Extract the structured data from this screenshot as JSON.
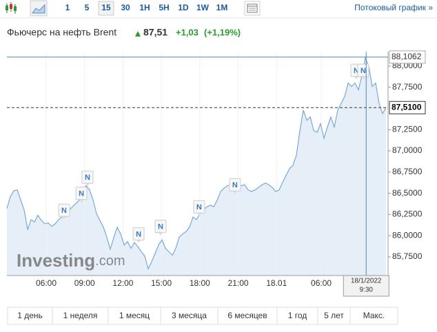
{
  "toolbar": {
    "intervals": [
      "1",
      "5",
      "15",
      "30",
      "1H",
      "5H",
      "1D",
      "1W",
      "1M"
    ],
    "streaming_link": "Потоковый график »"
  },
  "header": {
    "name": "Фьючерс на нефть Brent",
    "price": "87,51",
    "change": "+1,03",
    "change_pct": "(+1,19%)"
  },
  "chart_data": {
    "type": "area",
    "x": [
      2.93,
      3.2,
      3.47,
      3.74,
      4.01,
      4.28,
      4.55,
      4.82,
      5.08,
      5.35,
      5.62,
      5.89,
      6.16,
      6.43,
      6.7,
      6.97,
      7.24,
      7.51,
      7.78,
      8.05,
      8.32,
      8.59,
      8.85,
      9.12,
      9.39,
      9.66,
      9.93,
      10.2,
      10.47,
      10.74,
      11.01,
      11.28,
      11.55,
      11.82,
      12.09,
      12.36,
      12.62,
      12.89,
      13.16,
      13.43,
      13.7,
      13.97,
      14.24,
      14.51,
      14.78,
      15.05,
      15.32,
      15.59,
      15.86,
      16.12,
      16.39,
      16.66,
      16.93,
      17.2,
      17.47,
      17.74,
      18.01,
      18.28,
      18.55,
      18.82,
      19.09,
      19.36,
      19.63,
      19.9,
      20.16,
      20.43,
      20.7,
      20.97,
      21.24,
      21.51,
      21.78,
      22.05,
      22.32,
      22.59,
      22.86,
      23.13,
      23.4,
      23.66,
      23.93,
      24.2,
      24.47,
      24.74,
      25.01,
      25.28,
      25.55,
      25.82,
      26.09,
      26.36,
      26.63,
      26.9,
      27.17,
      27.43,
      27.7,
      27.97,
      28.24,
      28.51,
      28.78,
      29.05,
      29.32,
      29.59,
      29.86,
      30.13,
      30.4,
      30.67,
      30.94,
      31.21,
      31.47,
      31.74,
      32.01,
      32.28,
      32.55
    ],
    "values": [
      86.32,
      86.46,
      86.53,
      86.54,
      86.42,
      86.3,
      86.07,
      86.19,
      86.16,
      86.24,
      86.18,
      86.14,
      86.15,
      86.11,
      86.14,
      86.19,
      86.22,
      86.26,
      86.3,
      86.34,
      86.38,
      86.42,
      86.54,
      86.59,
      86.54,
      86.42,
      86.26,
      86.18,
      86.1,
      85.98,
      85.84,
      85.98,
      86.1,
      86.02,
      85.89,
      85.93,
      85.85,
      85.92,
      85.87,
      85.81,
      85.76,
      85.61,
      85.69,
      85.79,
      85.89,
      85.95,
      85.85,
      85.81,
      85.77,
      85.85,
      85.98,
      86.02,
      86.05,
      86.1,
      86.22,
      86.19,
      86.26,
      86.3,
      86.34,
      86.36,
      86.34,
      86.42,
      86.52,
      86.56,
      86.59,
      86.6,
      86.54,
      86.59,
      86.59,
      86.6,
      86.54,
      86.52,
      86.54,
      86.57,
      86.6,
      86.62,
      86.6,
      86.57,
      86.52,
      86.54,
      86.63,
      86.71,
      86.79,
      86.83,
      86.95,
      87.24,
      87.48,
      87.36,
      87.4,
      87.24,
      87.22,
      87.32,
      87.15,
      87.28,
      87.4,
      87.28,
      87.48,
      87.56,
      87.64,
      87.8,
      87.76,
      87.8,
      87.72,
      87.89,
      88.1,
      87.99,
      87.76,
      87.8,
      87.56,
      87.44,
      87.51
    ],
    "color": "#78a9d6",
    "xlim": [
      2.93,
      32.71
    ],
    "ylim": [
      85.53,
      88.17
    ],
    "xticks": [
      {
        "value": 6,
        "label": "06:00"
      },
      {
        "value": 9,
        "label": "09:00"
      },
      {
        "value": 12,
        "label": "12:00"
      },
      {
        "value": 15,
        "label": "15:00"
      },
      {
        "value": 18,
        "label": "18:00"
      },
      {
        "value": 21,
        "label": "21:00"
      },
      {
        "value": 24,
        "label": "18.01"
      },
      {
        "value": 27.49,
        "label": "06:00"
      }
    ],
    "yticks": [
      {
        "value": 88,
        "label": "88,0000"
      },
      {
        "value": 87.75,
        "label": "87,7500"
      },
      {
        "value": 87.25,
        "label": "87,2500"
      },
      {
        "value": 87,
        "label": "87,0000"
      },
      {
        "value": 86.75,
        "label": "86,7500"
      },
      {
        "value": 86.5,
        "label": "86,5000"
      },
      {
        "value": 86.25,
        "label": "86,2500"
      },
      {
        "value": 86,
        "label": "86,0000"
      },
      {
        "value": 85.75,
        "label": "85,7500"
      }
    ],
    "grid": true,
    "last_price": {
      "value": 87.51,
      "label": "87,5100"
    },
    "crosshair": {
      "x": 31.0,
      "y": 88.1062,
      "y_label": "88,1062",
      "x_label": [
        "18/1/2022",
        "9:30"
      ]
    },
    "news_markers": [
      {
        "x": 7.4,
        "y": 86.3,
        "label": "N"
      },
      {
        "x": 8.75,
        "y": 86.5,
        "label": "N"
      },
      {
        "x": 9.23,
        "y": 86.69,
        "label": "N"
      },
      {
        "x": 13.22,
        "y": 86.02,
        "label": "N"
      },
      {
        "x": 14.94,
        "y": 86.11,
        "label": "N"
      },
      {
        "x": 17.95,
        "y": 86.34,
        "label": "N"
      },
      {
        "x": 20.75,
        "y": 86.6,
        "label": "N"
      },
      {
        "x": 30.23,
        "y": 87.95,
        "label": "N"
      },
      {
        "x": 30.77,
        "y": 87.95,
        "label": "N"
      }
    ],
    "watermark": [
      "Investing",
      ".com"
    ]
  },
  "ranges": [
    "1 день",
    "1 неделя",
    "1 месяц",
    "3 месяца",
    "6 месяцев",
    "1 год",
    "5 лет",
    "Макс."
  ]
}
